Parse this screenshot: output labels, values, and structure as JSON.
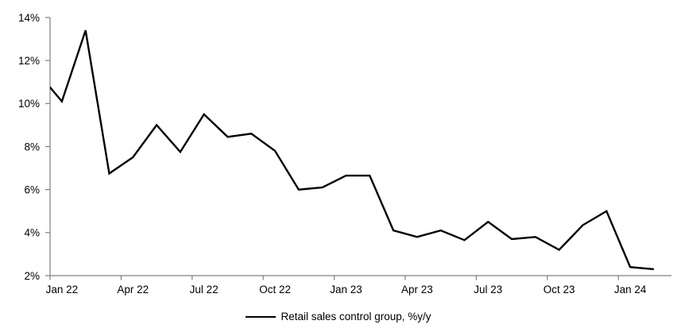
{
  "chart_data": {
    "type": "line",
    "title": "",
    "x": [
      "Dec 21",
      "Jan 22",
      "Feb 22",
      "Mar 22",
      "Apr 22",
      "May 22",
      "Jun 22",
      "Jul 22",
      "Aug 22",
      "Sep 22",
      "Oct 22",
      "Nov 22",
      "Dec 22",
      "Jan 23",
      "Feb 23",
      "Mar 23",
      "Apr 23",
      "May 23",
      "Jun 23",
      "Jul 23",
      "Aug 23",
      "Sep 23",
      "Oct 23",
      "Nov 23",
      "Dec 23",
      "Jan 24",
      "Feb 24"
    ],
    "series": [
      {
        "name": "Retail sales control group, %y/y",
        "color": "#000000",
        "values": [
          11.4,
          10.1,
          13.4,
          6.75,
          7.5,
          9.0,
          7.75,
          9.5,
          8.45,
          8.6,
          7.8,
          6.0,
          6.1,
          6.65,
          6.65,
          4.1,
          3.8,
          4.1,
          3.65,
          4.5,
          3.7,
          3.8,
          3.2,
          4.35,
          5.0,
          2.4,
          2.3
        ]
      }
    ],
    "first_point_clipped_at_left_axis": true,
    "x_tick_labels": [
      "Jan 22",
      "Apr 22",
      "Jul 22",
      "Oct 22",
      "Jan 23",
      "Apr 23",
      "Jul 23",
      "Oct 23",
      "Jan 24"
    ],
    "y_tick_labels": [
      "14%",
      "12%",
      "10%",
      "8%",
      "6%",
      "4%",
      "2%"
    ],
    "ylim": [
      2,
      14
    ],
    "y_tick_step": 2,
    "y_unit": "%",
    "grid": false,
    "legend": [
      "Retail sales control group, %y/y"
    ],
    "legend_position": "bottom-center",
    "axis_color": "#808080",
    "text_color": "#000000",
    "background_color": "#ffffff"
  }
}
